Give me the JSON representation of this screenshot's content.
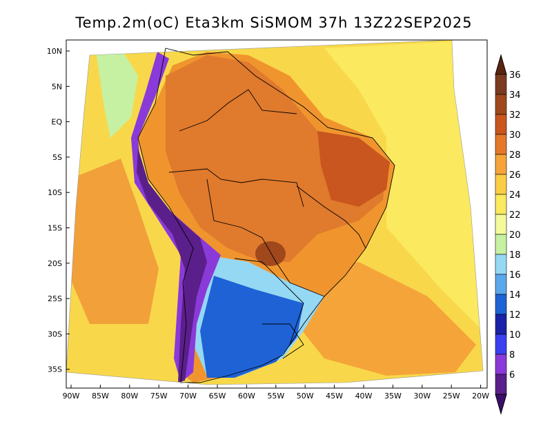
{
  "title": "Temp.2m(oC) Eta3km SiSMOM 37h 13Z22SEP2025",
  "lat_labels": [
    "10N",
    "5N",
    "EQ",
    "5S",
    "10S",
    "15S",
    "20S",
    "25S",
    "30S",
    "35S"
  ],
  "lon_labels": [
    "90W",
    "85W",
    "80W",
    "75W",
    "70W",
    "65W",
    "60W",
    "55W",
    "50W",
    "45W",
    "40W",
    "35W",
    "30W",
    "25W",
    "20W"
  ],
  "colorbar": {
    "labels": [
      "36",
      "34",
      "32",
      "30",
      "28",
      "26",
      "24",
      "22",
      "20",
      "18",
      "16",
      "14",
      "12",
      "10",
      "8",
      "6"
    ],
    "bands_top_to_bottom": [
      "#7a3b1e",
      "#a0481c",
      "#c8561e",
      "#e4782a",
      "#f5a43a",
      "#fbcd45",
      "#fbe95f",
      "#f4f99a",
      "#c6f1a2",
      "#95d8f4",
      "#5ba7eb",
      "#1e62d6",
      "#1a22a8",
      "#3a3ff0",
      "#8a3ad8",
      "#5a1f8a"
    ],
    "arrow_top_color": "#5a2410",
    "arrow_bottom_color": "#3b0e6a"
  },
  "field_colors": {
    "ocean_warm": "#f8d84a",
    "ocean_pale": "#fbe95f",
    "amazon_hot": "#e07a2d",
    "northeast_hot": "#c8561e",
    "pantanal_hot": "#a0481c",
    "central_warm": "#f0952e",
    "pacific_orange": "#f2a03a",
    "andes_cold": "#5a1f8a",
    "andes_cold2": "#8a3ad8",
    "south_cold": "#1e62d6",
    "south_cool": "#5ba7eb",
    "south_pale": "#95d8f4",
    "coast_green": "#c6f1a2",
    "atlantic_orange": "#f5a43a"
  }
}
